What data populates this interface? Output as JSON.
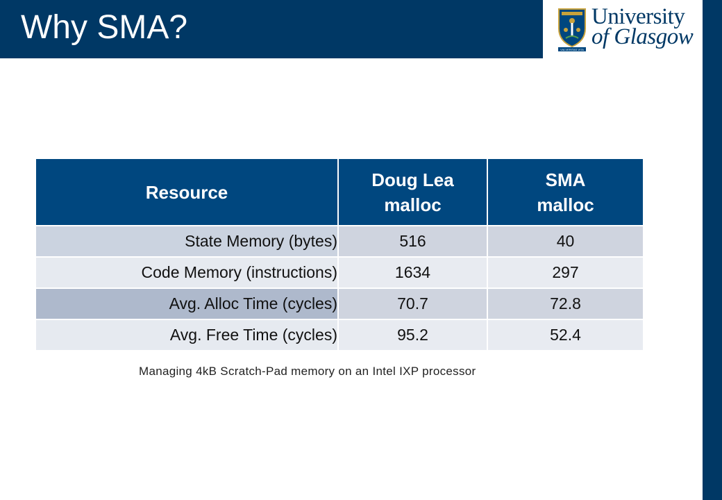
{
  "slide": {
    "title": "Why SMA?"
  },
  "logo": {
    "line1": "University",
    "line2": "of Glasgow",
    "motto": "VIA VERITAS VITA"
  },
  "table": {
    "headers": [
      "Resource",
      "Doug Lea\nmalloc",
      "SMA\nmalloc"
    ],
    "rows": [
      [
        "State Memory (bytes)",
        "516",
        "40"
      ],
      [
        "Code Memory (instructions)",
        "1634",
        "297"
      ],
      [
        "Avg. Alloc Time (cycles)",
        "70.7",
        "72.8"
      ],
      [
        "Avg. Free Time (cycles)",
        "95.2",
        "52.4"
      ]
    ]
  },
  "caption": "Managing 4kB Scratch-Pad memory on an Intel IXP processor",
  "colors": {
    "brand_navy": "#003865",
    "table_header": "#00477f"
  },
  "icons": [
    "university-crest-icon"
  ]
}
